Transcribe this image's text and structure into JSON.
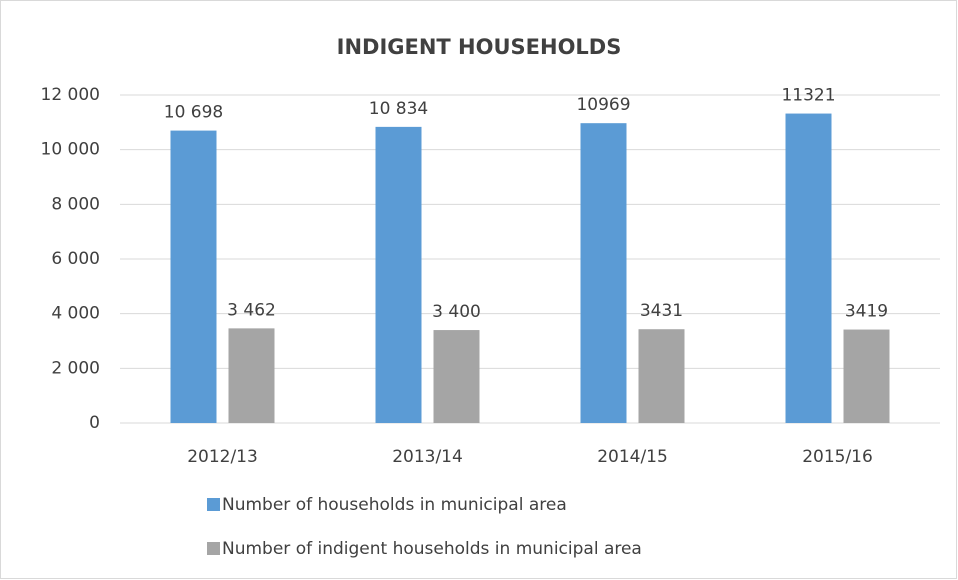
{
  "chart_data": {
    "type": "bar",
    "title": "INDIGENT HOUSEHOLDS",
    "categories": [
      "2012/13",
      "2013/14",
      "2014/15",
      "2015/16"
    ],
    "series": [
      {
        "name": "Number of households in municipal area",
        "color": "#5b9bd5",
        "values": [
          10698,
          10834,
          10969,
          11321
        ],
        "value_labels": [
          "10 698",
          "10 834",
          "10969",
          "11321"
        ]
      },
      {
        "name": "Number of indigent households in municipal area",
        "color": "#a5a5a5",
        "values": [
          3462,
          3400,
          3431,
          3419
        ],
        "value_labels": [
          "3 462",
          "3 400",
          "3431",
          "3419"
        ]
      }
    ],
    "ylim": [
      0,
      12000
    ],
    "yticks": [
      0,
      {
        "value": 2000,
        "label": "2 000"
      },
      {
        "value": 4000,
        "label": "4 000"
      },
      {
        "value": 6000,
        "label": "6 000"
      },
      {
        "value": 8000,
        "label": "8 000"
      },
      {
        "value": 10000,
        "label": "10 000"
      },
      {
        "value": 12000,
        "label": "12 000"
      }
    ],
    "grid": true,
    "legend": "bottom"
  }
}
